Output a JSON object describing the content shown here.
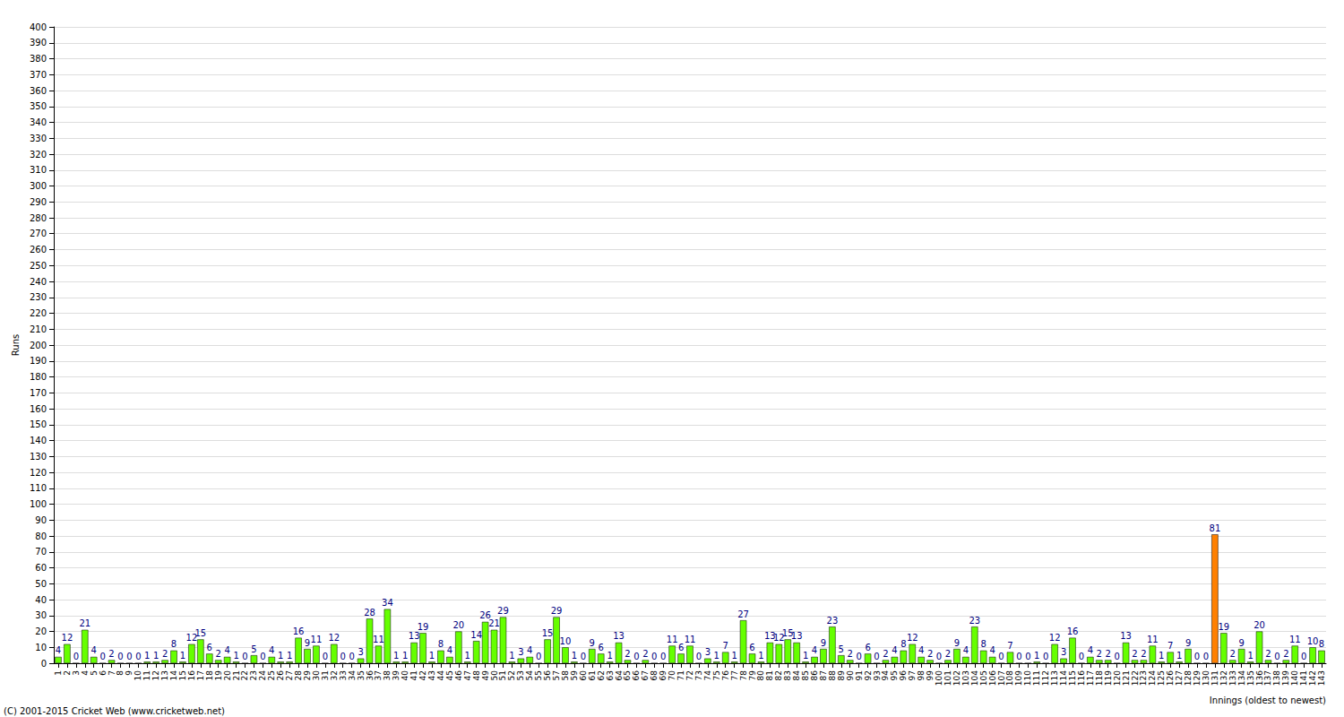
{
  "chart_data": {
    "type": "bar",
    "x_label": "Innings (oldest to newest)",
    "y_label": "Runs",
    "annotations": [
      "(C) 2001-2015 Cricket Web (www.cricketweb.net)"
    ],
    "categories": [
      "1",
      "2",
      "3",
      "4",
      "5",
      "6",
      "7",
      "8",
      "9",
      "10",
      "11",
      "12",
      "13",
      "14",
      "15",
      "16",
      "17",
      "18",
      "19",
      "20",
      "21",
      "22",
      "23",
      "24",
      "25",
      "26",
      "27",
      "28",
      "29",
      "30",
      "31",
      "32",
      "33",
      "34",
      "35",
      "36",
      "37",
      "38",
      "39",
      "40",
      "41",
      "42",
      "43",
      "44",
      "45",
      "46",
      "47",
      "48",
      "49",
      "50",
      "51",
      "52",
      "53",
      "54",
      "55",
      "56",
      "57",
      "58",
      "59",
      "60",
      "61",
      "62",
      "63",
      "64",
      "65",
      "66",
      "67",
      "68",
      "69",
      "70",
      "71",
      "72",
      "73",
      "74",
      "75",
      "76",
      "77",
      "78",
      "79",
      "80",
      "81",
      "82",
      "83",
      "84",
      "85",
      "86",
      "87",
      "88",
      "89",
      "90",
      "91",
      "92",
      "93",
      "94",
      "95",
      "96",
      "97",
      "98",
      "99",
      "100",
      "101",
      "102",
      "103",
      "104",
      "105",
      "106",
      "107",
      "108",
      "109",
      "110",
      "111",
      "112",
      "113",
      "114",
      "115",
      "116",
      "117",
      "118",
      "119",
      "120",
      "121",
      "122",
      "123",
      "124",
      "125",
      "126",
      "127",
      "128",
      "129",
      "130",
      "131",
      "132",
      "133",
      "134",
      "135",
      "136",
      "137",
      "138",
      "139",
      "140",
      "141",
      "142",
      "143"
    ],
    "values": [
      4,
      12,
      0,
      21,
      4,
      0,
      2,
      0,
      0,
      0,
      1,
      1,
      2,
      8,
      1,
      12,
      15,
      6,
      2,
      4,
      1,
      0,
      5,
      0,
      4,
      1,
      1,
      16,
      9,
      11,
      0,
      12,
      0,
      0,
      3,
      28,
      11,
      34,
      1,
      1,
      13,
      19,
      1,
      8,
      4,
      20,
      1,
      14,
      26,
      21,
      29,
      1,
      3,
      4,
      0,
      15,
      29,
      10,
      1,
      0,
      9,
      6,
      1,
      13,
      2,
      0,
      2,
      0,
      0,
      11,
      6,
      11,
      0,
      3,
      1,
      7,
      1,
      27,
      6,
      1,
      13,
      12,
      15,
      13,
      1,
      4,
      9,
      23,
      5,
      2,
      0,
      6,
      0,
      2,
      4,
      8,
      12,
      4,
      2,
      0,
      2,
      9,
      4,
      23,
      8,
      4,
      0,
      7,
      0,
      0,
      1,
      0,
      12,
      3,
      16,
      0,
      4,
      2,
      2,
      0,
      13,
      2,
      2,
      11,
      1,
      7,
      1,
      9,
      0,
      0,
      81,
      19,
      2,
      9,
      1,
      20,
      2,
      0,
      2,
      11,
      0,
      10,
      8
    ],
    "colors": [
      "#66ff00",
      "#66ff00",
      "#66ff00",
      "#66ff00",
      "#66ff00",
      "#66ff00",
      "#66ff00",
      "#66ff00",
      "#66ff00",
      "#66ff00",
      "#66ff00",
      "#66ff00",
      "#66ff00",
      "#66ff00",
      "#66ff00",
      "#66ff00",
      "#66ff00",
      "#66ff00",
      "#66ff00",
      "#66ff00",
      "#66ff00",
      "#66ff00",
      "#66ff00",
      "#66ff00",
      "#66ff00",
      "#66ff00",
      "#66ff00",
      "#66ff00",
      "#66ff00",
      "#66ff00",
      "#66ff00",
      "#66ff00",
      "#66ff00",
      "#66ff00",
      "#66ff00",
      "#66ff00",
      "#66ff00",
      "#66ff00",
      "#66ff00",
      "#66ff00",
      "#66ff00",
      "#66ff00",
      "#66ff00",
      "#66ff00",
      "#66ff00",
      "#66ff00",
      "#66ff00",
      "#66ff00",
      "#66ff00",
      "#66ff00",
      "#66ff00",
      "#66ff00",
      "#66ff00",
      "#66ff00",
      "#66ff00",
      "#66ff00",
      "#66ff00",
      "#66ff00",
      "#66ff00",
      "#66ff00",
      "#66ff00",
      "#66ff00",
      "#66ff00",
      "#66ff00",
      "#66ff00",
      "#66ff00",
      "#66ff00",
      "#66ff00",
      "#66ff00",
      "#66ff00",
      "#66ff00",
      "#66ff00",
      "#66ff00",
      "#66ff00",
      "#66ff00",
      "#66ff00",
      "#66ff00",
      "#66ff00",
      "#66ff00",
      "#66ff00",
      "#66ff00",
      "#66ff00",
      "#66ff00",
      "#66ff00",
      "#66ff00",
      "#66ff00",
      "#66ff00",
      "#66ff00",
      "#66ff00",
      "#66ff00",
      "#66ff00",
      "#66ff00",
      "#66ff00",
      "#66ff00",
      "#66ff00",
      "#66ff00",
      "#66ff00",
      "#66ff00",
      "#66ff00",
      "#66ff00",
      "#66ff00",
      "#66ff00",
      "#66ff00",
      "#66ff00",
      "#66ff00",
      "#66ff00",
      "#66ff00",
      "#66ff00",
      "#66ff00",
      "#66ff00",
      "#66ff00",
      "#66ff00",
      "#66ff00",
      "#66ff00",
      "#66ff00",
      "#66ff00",
      "#66ff00",
      "#66ff00",
      "#66ff00",
      "#66ff00",
      "#66ff00",
      "#66ff00",
      "#66ff00",
      "#66ff00",
      "#66ff00",
      "#66ff00",
      "#66ff00",
      "#66ff00",
      "#66ff00",
      "#66ff00",
      "#ff8000",
      "#66ff00",
      "#66ff00",
      "#66ff00",
      "#66ff00",
      "#66ff00",
      "#66ff00",
      "#66ff00",
      "#66ff00",
      "#66ff00",
      "#66ff00",
      "#66ff00",
      "#66ff00"
    ],
    "ylim": [
      0,
      400
    ],
    "yticks": [
      0,
      10,
      20,
      30,
      40,
      50,
      60,
      70,
      80,
      90,
      100,
      110,
      120,
      130,
      140,
      150,
      160,
      170,
      180,
      190,
      200,
      210,
      220,
      230,
      240,
      250,
      260,
      270,
      280,
      290,
      300,
      310,
      320,
      330,
      340,
      350,
      360,
      370,
      380,
      390,
      400
    ],
    "grid": true,
    "data_labels": true
  }
}
